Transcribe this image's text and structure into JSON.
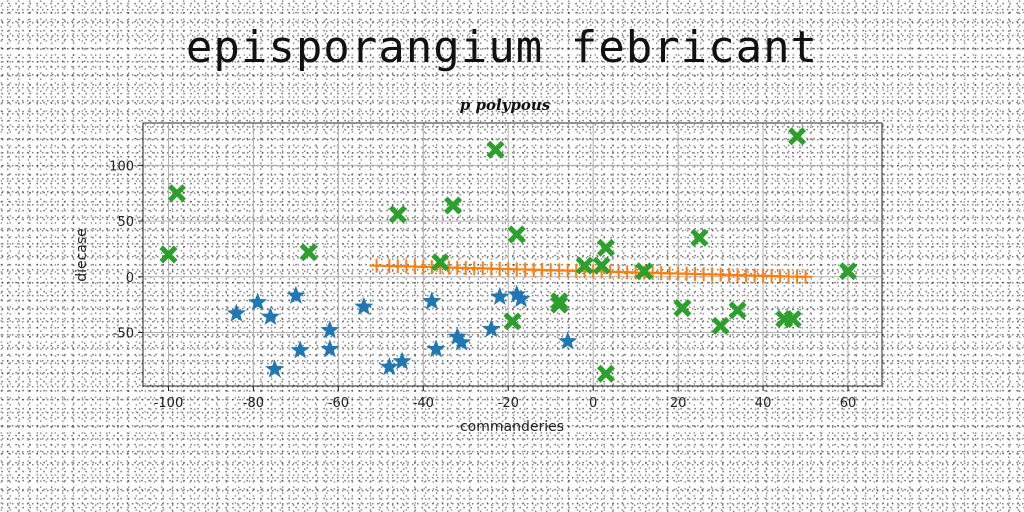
{
  "chart_data": {
    "type": "scatter",
    "title": "episporangium febricant",
    "subtitle": "p polypous",
    "xlabel": "commanderies",
    "ylabel": "diecase",
    "xlim": [
      -106,
      68
    ],
    "ylim": [
      -98,
      138
    ],
    "xticks": [
      -100,
      -80,
      -60,
      -40,
      -20,
      0,
      20,
      40,
      60
    ],
    "yticks": [
      -50,
      0,
      50,
      100
    ],
    "grid": true,
    "series": [
      {
        "marker": "star",
        "color": "#1f77b4",
        "points": [
          [
            -84,
            -33
          ],
          [
            -79,
            -23
          ],
          [
            -76,
            -36
          ],
          [
            -75,
            -83
          ],
          [
            -70,
            -17
          ],
          [
            -69,
            -66
          ],
          [
            -62,
            -48
          ],
          [
            -62,
            -65
          ],
          [
            -54,
            -27
          ],
          [
            -48,
            -81
          ],
          [
            -45,
            -76
          ],
          [
            -38,
            -22
          ],
          [
            -37,
            -65
          ],
          [
            -32,
            -54
          ],
          [
            -31,
            -59
          ],
          [
            -24,
            -47
          ],
          [
            -22,
            -18
          ],
          [
            -18,
            -16
          ],
          [
            -17,
            -20
          ],
          [
            -6,
            -58
          ]
        ]
      },
      {
        "marker": "plus-line",
        "color": "#ff7f0e",
        "points": [
          [
            -51,
            10
          ],
          [
            -48,
            9.7
          ],
          [
            -46,
            9.5
          ],
          [
            -44,
            9.3
          ],
          [
            -42,
            9.1
          ],
          [
            -40,
            8.9
          ],
          [
            -38,
            8.7
          ],
          [
            -36,
            8.5
          ],
          [
            -34,
            8.3
          ],
          [
            -32,
            8.1
          ],
          [
            -30,
            7.9
          ],
          [
            -28,
            7.7
          ],
          [
            -26,
            7.5
          ],
          [
            -24,
            7.3
          ],
          [
            -22,
            7.1
          ],
          [
            -20,
            6.9
          ],
          [
            -18,
            6.7
          ],
          [
            -16,
            6.5
          ],
          [
            -14,
            6.3
          ],
          [
            -12,
            6.1
          ],
          [
            -10,
            5.9
          ],
          [
            -8,
            5.7
          ],
          [
            -6,
            5.5
          ],
          [
            -4,
            5.3
          ],
          [
            -2,
            5.1
          ],
          [
            0,
            4.9
          ],
          [
            2,
            4.7
          ],
          [
            4,
            4.5
          ],
          [
            6,
            4.3
          ],
          [
            8,
            4.1
          ],
          [
            10,
            3.9
          ],
          [
            12,
            3.7
          ],
          [
            14,
            3.5
          ],
          [
            16,
            3.3
          ],
          [
            18,
            3.1
          ],
          [
            20,
            2.9
          ],
          [
            22,
            2.7
          ],
          [
            24,
            2.5
          ],
          [
            26,
            2.3
          ],
          [
            28,
            2.1
          ],
          [
            30,
            1.9
          ],
          [
            32,
            1.7
          ],
          [
            34,
            1.5
          ],
          [
            36,
            1.3
          ],
          [
            38,
            1.1
          ],
          [
            40,
            0.9
          ],
          [
            42,
            0.7
          ],
          [
            44,
            0.5
          ],
          [
            46,
            0.3
          ],
          [
            48,
            0.1
          ],
          [
            50,
            0
          ]
        ]
      },
      {
        "marker": "x-filled",
        "color": "#2ca02c",
        "points": [
          [
            -100,
            20
          ],
          [
            -98,
            75
          ],
          [
            -67,
            22
          ],
          [
            -46,
            56
          ],
          [
            -36,
            13
          ],
          [
            -33,
            64
          ],
          [
            -23,
            114
          ],
          [
            -19,
            -40
          ],
          [
            -18,
            38
          ],
          [
            -8,
            -22
          ],
          [
            -8,
            -25
          ],
          [
            -2,
            10
          ],
          [
            2,
            10
          ],
          [
            3,
            26
          ],
          [
            3,
            -87
          ],
          [
            12,
            5
          ],
          [
            21,
            -28
          ],
          [
            25,
            35
          ],
          [
            30,
            -44
          ],
          [
            34,
            -30
          ],
          [
            45,
            -38
          ],
          [
            47,
            -38
          ],
          [
            48,
            126
          ],
          [
            60,
            5
          ]
        ]
      }
    ]
  }
}
